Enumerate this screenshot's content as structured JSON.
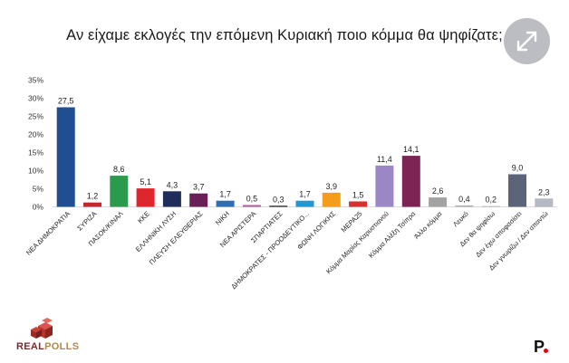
{
  "title": "Αν είχαμε εκλογές την επόμενη Κυριακή ποιο κόμμα θα ψηφίζατε;",
  "logo": {
    "part1": "REAL",
    "part2": "POLLS",
    "icon": "realpolls-logo-icon"
  },
  "brand": {
    "letter": "P",
    "icon": "brand-logo-icon"
  },
  "expand_icon": "expand-arrows-icon",
  "chart_data": {
    "type": "bar",
    "title": "Αν είχαμε εκλογές την επόμενη Κυριακή ποιο κόμμα θα ψηφίζατε;",
    "xlabel": "",
    "ylabel": "",
    "ylim": [
      0,
      35
    ],
    "yticks": [
      "0%",
      "5%",
      "10%",
      "15%",
      "20%",
      "25%",
      "30%",
      "35%"
    ],
    "ytick_values": [
      0,
      5,
      10,
      15,
      20,
      25,
      30,
      35
    ],
    "grid": false,
    "legend": "none",
    "categories": [
      "ΝΕΑ ΔΗΜΟΚΡΑΤΙΑ",
      "ΣΥΡΙΖΑ",
      "ΠΑΣΟΚ/ΚΙΝΑΛ",
      "ΚΚΕ",
      "ΕΛΛΗΝΙΚΗ ΛΥΣΗ",
      "ΠΛΕΥΣΗ ΕΛΕΥΘΕΡΙΑΣ",
      "ΝΙΚΗ",
      "ΝΕΑ ΑΡΙΣΤΕΡΑ",
      "ΣΠΑΡΤΙΑΤΕΣ",
      "ΔΗΜΟΚΡΑΤΕΣ - ΠΡΟΟΔΕΥΤΙΚΟ...",
      "ΦΩΝΗ ΛΟΓΙΚΗΣ",
      "ΜΕΡΑ25",
      "Κόμμα Μαρίας Καρυστιανού",
      "Κόμμα Αλέξη Τσίπρα",
      "Άλλο κόμμα",
      "Λευκό",
      "Δεν θα ψηφίσω",
      "Δεν έχω αποφασίσει",
      "Δεν γνωρίζω / Δεν απαντώ"
    ],
    "values": [
      27.5,
      1.2,
      8.6,
      5.1,
      4.3,
      3.7,
      1.7,
      0.5,
      0.3,
      1.7,
      3.9,
      1.5,
      11.4,
      14.1,
      2.6,
      0.4,
      0.2,
      9.0,
      2.3
    ],
    "data_labels": [
      "27,5",
      "1,2",
      "8,6",
      "5,1",
      "4,3",
      "3,7",
      "1,7",
      "0,5",
      "0,3",
      "1,7",
      "3,9",
      "1,5",
      "11,4",
      "14,1",
      "2,6",
      "0,4",
      "0,2",
      "9,0",
      "2,3"
    ],
    "colors": [
      "#1f4f91",
      "#c0282d",
      "#2a9b4a",
      "#e0262d",
      "#1f2d5c",
      "#6a1e56",
      "#2e6eb5",
      "#b85a9e",
      "#1a1a1a",
      "#2397d1",
      "#f59c1a",
      "#d92f2f",
      "#9a87c6",
      "#7d2455",
      "#a3a3a3",
      "#b0b0b0",
      "#b0b0b0",
      "#5b6478",
      "#b5b9c4"
    ]
  }
}
